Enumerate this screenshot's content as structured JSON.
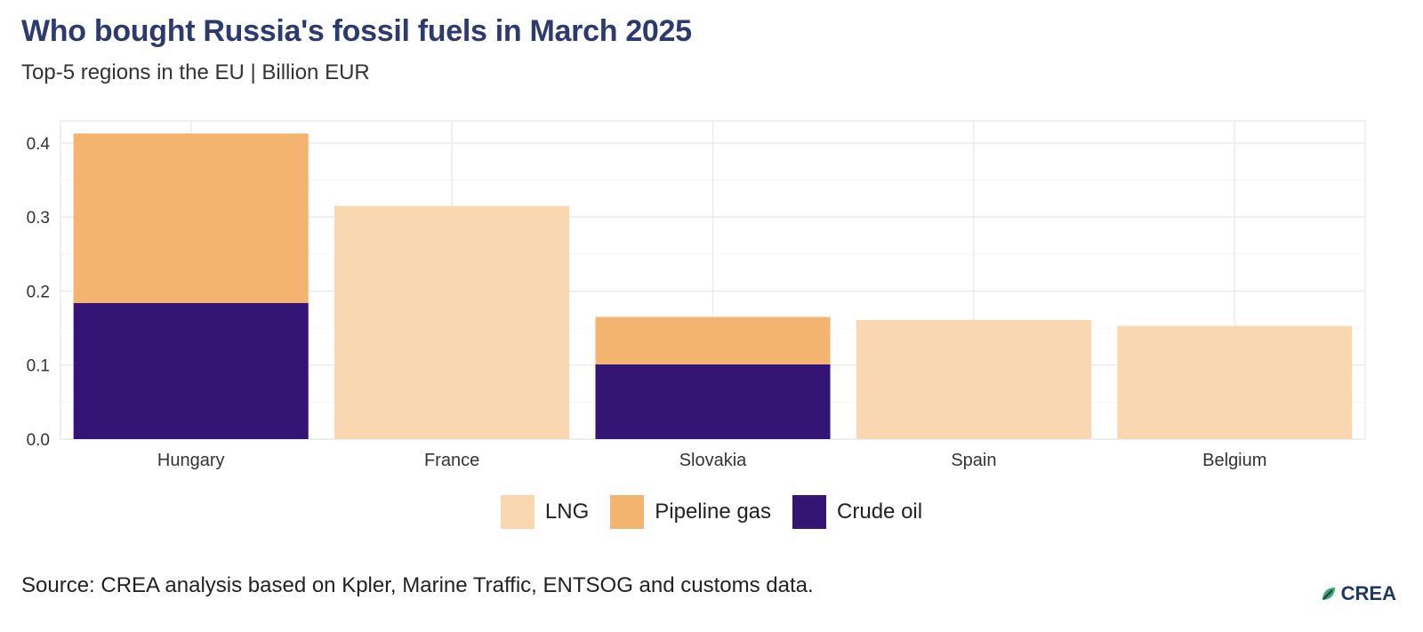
{
  "chart_data": {
    "type": "bar",
    "stacked": true,
    "title": "Who bought Russia's fossil fuels in March 2025",
    "subtitle": "Top-5 regions in the EU | Billion EUR",
    "categories": [
      "Hungary",
      "France",
      "Slovakia",
      "Spain",
      "Belgium"
    ],
    "series": [
      {
        "name": "Crude oil",
        "color": "#341575",
        "values": [
          0.184,
          0,
          0.101,
          0,
          0
        ]
      },
      {
        "name": "Pipeline gas",
        "color": "#f4b470",
        "values": [
          0.229,
          0,
          0.064,
          0,
          0
        ]
      },
      {
        "name": "LNG",
        "color": "#f9d7b0",
        "values": [
          0,
          0.315,
          0,
          0.161,
          0.153
        ]
      }
    ],
    "legend_order": [
      "LNG",
      "Pipeline gas",
      "Crude oil"
    ],
    "ylim": [
      0,
      0.43
    ],
    "yticks": [
      "0.0",
      "0.1",
      "0.2",
      "0.3",
      "0.4"
    ],
    "ytick_values": [
      0,
      0.1,
      0.2,
      0.3,
      0.4
    ],
    "grid": true,
    "legend_position": "bottom",
    "source": "Source: CREA analysis based on Kpler, Marine Traffic, ENTSOG and customs data."
  },
  "logo": {
    "text": "CREA",
    "icon": "leaf-icon",
    "color": "#1f3a5f",
    "accent": "#3aa56e"
  }
}
